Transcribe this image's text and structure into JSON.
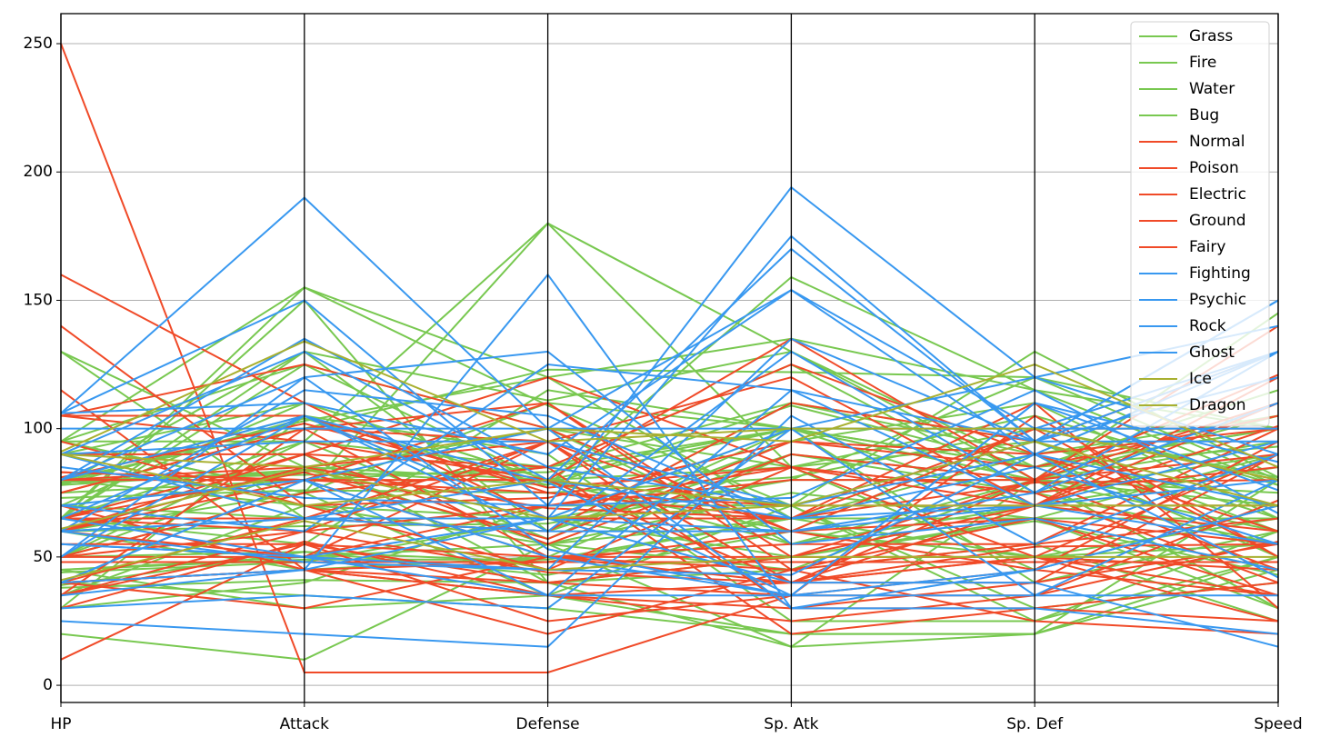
{
  "chart_data": {
    "type": "parallel",
    "categories": [
      "HP",
      "Attack",
      "Defense",
      "Sp. Atk",
      "Sp. Def",
      "Speed"
    ],
    "ylim": [
      -6.7,
      261.7
    ],
    "yticks": [
      0,
      50,
      100,
      150,
      200,
      250
    ],
    "grid": true,
    "legend_position": "upper right",
    "series": [
      {
        "name": "Grass",
        "color": "#78c850",
        "values": [
          [
            45,
            49,
            49,
            65,
            65,
            45
          ],
          [
            60,
            62,
            63,
            80,
            80,
            60
          ],
          [
            80,
            82,
            83,
            100,
            100,
            80
          ],
          [
            80,
            100,
            123,
            122,
            120,
            80
          ],
          [
            45,
            50,
            55,
            75,
            65,
            30
          ],
          [
            75,
            80,
            85,
            110,
            90,
            50
          ],
          [
            50,
            75,
            35,
            70,
            30,
            40
          ],
          [
            80,
            105,
            65,
            100,
            70,
            70
          ],
          [
            95,
            95,
            85,
            125,
            75,
            55
          ],
          [
            65,
            55,
            115,
            100,
            40,
            60
          ]
        ]
      },
      {
        "name": "Fire",
        "color": "#78c850",
        "values": [
          [
            39,
            52,
            43,
            60,
            50,
            65
          ],
          [
            78,
            84,
            78,
            109,
            85,
            100
          ],
          [
            78,
            130,
            111,
            130,
            85,
            100
          ],
          [
            78,
            104,
            78,
            159,
            115,
            100
          ],
          [
            38,
            41,
            40,
            50,
            65,
            65
          ],
          [
            73,
            76,
            75,
            81,
            100,
            100
          ],
          [
            90,
            110,
            80,
            100,
            80,
            95
          ],
          [
            50,
            85,
            55,
            65,
            65,
            90
          ],
          [
            65,
            95,
            57,
            100,
            85,
            93
          ],
          [
            65,
            130,
            60,
            95,
            110,
            65
          ]
        ]
      },
      {
        "name": "Water",
        "color": "#78c850",
        "values": [
          [
            44,
            48,
            65,
            50,
            64,
            43
          ],
          [
            79,
            83,
            100,
            85,
            105,
            78
          ],
          [
            79,
            103,
            120,
            135,
            115,
            78
          ],
          [
            50,
            52,
            48,
            65,
            50,
            55
          ],
          [
            80,
            70,
            65,
            80,
            120,
            100
          ],
          [
            95,
            75,
            110,
            100,
            80,
            30
          ],
          [
            95,
            75,
            180,
            130,
            80,
            30
          ],
          [
            50,
            95,
            180,
            85,
            45,
            70
          ],
          [
            30,
            105,
            90,
            25,
            25,
            50
          ],
          [
            95,
            125,
            79,
            60,
            100,
            81
          ],
          [
            95,
            155,
            109,
            70,
            130,
            81
          ],
          [
            130,
            85,
            80,
            85,
            95,
            60
          ],
          [
            20,
            10,
            55,
            15,
            20,
            80
          ],
          [
            130,
            65,
            60,
            110,
            95,
            65
          ],
          [
            60,
            75,
            85,
            100,
            85,
            115
          ],
          [
            30,
            40,
            70,
            70,
            25,
            60
          ]
        ]
      },
      {
        "name": "Bug",
        "color": "#78c850",
        "values": [
          [
            45,
            30,
            35,
            20,
            20,
            45
          ],
          [
            60,
            45,
            50,
            90,
            80,
            70
          ],
          [
            40,
            35,
            30,
            20,
            20,
            50
          ],
          [
            65,
            90,
            40,
            45,
            80,
            75
          ],
          [
            65,
            150,
            40,
            15,
            80,
            145
          ],
          [
            35,
            70,
            55,
            45,
            55,
            25
          ],
          [
            70,
            65,
            60,
            90,
            75,
            90
          ],
          [
            70,
            110,
            80,
            55,
            80,
            105
          ],
          [
            65,
            125,
            100,
            55,
            70,
            85
          ],
          [
            65,
            155,
            120,
            65,
            90,
            105
          ]
        ]
      },
      {
        "name": "Normal",
        "color": "#f04a28",
        "values": [
          [
            40,
            45,
            40,
            35,
            35,
            56
          ],
          [
            83,
            80,
            75,
            70,
            70,
            101
          ],
          [
            83,
            80,
            80,
            135,
            80,
            121
          ],
          [
            30,
            56,
            35,
            25,
            35,
            72
          ],
          [
            115,
            45,
            20,
            45,
            25,
            20
          ],
          [
            140,
            70,
            45,
            85,
            50,
            45
          ],
          [
            40,
            45,
            35,
            40,
            40,
            90
          ],
          [
            250,
            5,
            5,
            35,
            105,
            50
          ],
          [
            105,
            95,
            80,
            40,
            80,
            90
          ],
          [
            105,
            125,
            100,
            60,
            100,
            100
          ],
          [
            75,
            100,
            95,
            40,
            70,
            110
          ],
          [
            160,
            110,
            65,
            65,
            110,
            30
          ],
          [
            65,
            60,
            70,
            85,
            75,
            40
          ],
          [
            48,
            48,
            48,
            48,
            48,
            48
          ],
          [
            55,
            55,
            50,
            45,
            65,
            55
          ]
        ]
      },
      {
        "name": "Poison",
        "color": "#f04a28",
        "values": [
          [
            35,
            60,
            44,
            40,
            54,
            55
          ],
          [
            60,
            85,
            69,
            65,
            79,
            80
          ],
          [
            81,
            102,
            77,
            85,
            75,
            85
          ],
          [
            80,
            80,
            50,
            40,
            50,
            25
          ],
          [
            105,
            105,
            75,
            65,
            100,
            50
          ],
          [
            40,
            65,
            95,
            60,
            45,
            35
          ],
          [
            65,
            90,
            120,
            85,
            70,
            60
          ],
          [
            40,
            45,
            35,
            30,
            40,
            55
          ]
        ]
      },
      {
        "name": "Electric",
        "color": "#f04a28",
        "values": [
          [
            35,
            55,
            40,
            50,
            50,
            90
          ],
          [
            60,
            90,
            55,
            90,
            80,
            110
          ],
          [
            40,
            30,
            50,
            55,
            55,
            100
          ],
          [
            60,
            50,
            70,
            80,
            80,
            140
          ],
          [
            65,
            83,
            57,
            95,
            85,
            105
          ],
          [
            65,
            65,
            60,
            110,
            95,
            130
          ],
          [
            90,
            90,
            85,
            125,
            90,
            100
          ],
          [
            50,
            60,
            95,
            120,
            70,
            70
          ]
        ]
      },
      {
        "name": "Ground",
        "color": "#f04a28",
        "values": [
          [
            50,
            75,
            85,
            20,
            30,
            40
          ],
          [
            75,
            100,
            110,
            45,
            55,
            65
          ],
          [
            10,
            55,
            25,
            35,
            45,
            95
          ],
          [
            35,
            100,
            50,
            50,
            70,
            120
          ],
          [
            50,
            50,
            95,
            40,
            50,
            35
          ],
          [
            60,
            80,
            110,
            50,
            80,
            45
          ],
          [
            80,
            85,
            95,
            30,
            30,
            25
          ]
        ]
      },
      {
        "name": "Fairy",
        "color": "#f04a28",
        "values": [
          [
            70,
            45,
            48,
            60,
            65,
            35
          ],
          [
            95,
            70,
            73,
            95,
            90,
            60
          ]
        ]
      },
      {
        "name": "Fighting",
        "color": "#3898f0",
        "values": [
          [
            40,
            80,
            35,
            35,
            45,
            70
          ],
          [
            65,
            105,
            60,
            60,
            70,
            95
          ],
          [
            70,
            80,
            50,
            35,
            35,
            35
          ],
          [
            90,
            130,
            80,
            65,
            85,
            55
          ],
          [
            50,
            120,
            53,
            35,
            110,
            87
          ],
          [
            50,
            105,
            79,
            35,
            110,
            76
          ],
          [
            90,
            95,
            95,
            70,
            90,
            70
          ]
        ]
      },
      {
        "name": "Psychic",
        "color": "#3898f0",
        "values": [
          [
            25,
            20,
            15,
            105,
            55,
            90
          ],
          [
            55,
            50,
            45,
            135,
            95,
            120
          ],
          [
            55,
            50,
            65,
            175,
            95,
            150
          ],
          [
            60,
            48,
            45,
            43,
            90,
            42
          ],
          [
            85,
            73,
            70,
            73,
            115,
            67
          ],
          [
            40,
            45,
            65,
            100,
            120,
            90
          ],
          [
            65,
            50,
            35,
            115,
            95,
            95
          ],
          [
            106,
            110,
            90,
            154,
            90,
            130
          ],
          [
            106,
            190,
            100,
            154,
            100,
            130
          ],
          [
            106,
            150,
            70,
            194,
            120,
            140
          ],
          [
            100,
            100,
            100,
            100,
            100,
            100
          ],
          [
            90,
            65,
            65,
            40,
            40,
            15
          ]
        ]
      },
      {
        "name": "Rock",
        "color": "#3898f0",
        "values": [
          [
            40,
            80,
            100,
            30,
            30,
            20
          ],
          [
            80,
            120,
            130,
            55,
            65,
            45
          ],
          [
            35,
            45,
            160,
            30,
            45,
            70
          ],
          [
            70,
            60,
            125,
            115,
            70,
            55
          ],
          [
            60,
            115,
            105,
            65,
            70,
            80
          ],
          [
            80,
            105,
            65,
            60,
            75,
            130
          ],
          [
            80,
            135,
            85,
            70,
            95,
            150
          ]
        ]
      },
      {
        "name": "Ghost",
        "color": "#3898f0",
        "values": [
          [
            30,
            35,
            30,
            100,
            35,
            80
          ],
          [
            60,
            65,
            60,
            130,
            75,
            110
          ],
          [
            60,
            65,
            80,
            170,
            95,
            130
          ]
        ]
      },
      {
        "name": "Ice",
        "color": "#a8b030",
        "values": [
          [
            90,
            85,
            100,
            95,
            125,
            85
          ],
          [
            90,
            70,
            80,
            70,
            95,
            70
          ]
        ]
      },
      {
        "name": "Dragon",
        "color": "#a8b030",
        "values": [
          [
            41,
            64,
            45,
            50,
            50,
            50
          ],
          [
            61,
            84,
            65,
            70,
            70,
            70
          ],
          [
            91,
            134,
            95,
            100,
            100,
            80
          ]
        ]
      }
    ]
  }
}
